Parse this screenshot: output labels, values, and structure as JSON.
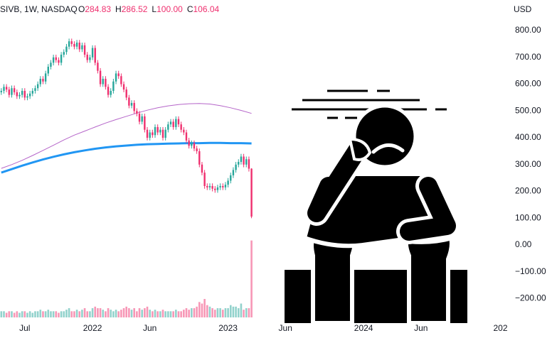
{
  "header": {
    "symbol": "SIVB, 1W, NASDAQ",
    "fields": [
      {
        "key": "O",
        "text": "284.83"
      },
      {
        "key": "H",
        "text": "286.52"
      },
      {
        "key": "L",
        "text": "100.00"
      },
      {
        "key": "C",
        "text": "106.04"
      }
    ]
  },
  "chart_data": {
    "type": "candlestick",
    "currency": "USD",
    "open": [
      570,
      575,
      590,
      580,
      560,
      585,
      570,
      555,
      560,
      575,
      550,
      555,
      565,
      575,
      585,
      600,
      620,
      610,
      640,
      665,
      680,
      700,
      690,
      680,
      710,
      720,
      740,
      760,
      750,
      740,
      755,
      730,
      745,
      710,
      690,
      700,
      735,
      680,
      650,
      600,
      620,
      590,
      560,
      575,
      610,
      640,
      630,
      600,
      580,
      550,
      520,
      530,
      500,
      490,
      460,
      480,
      430,
      400,
      420,
      410,
      440,
      420,
      430,
      400,
      430,
      450,
      460,
      440,
      470,
      450,
      430,
      420,
      390,
      370,
      380,
      360,
      350,
      300,
      270,
      220,
      215,
      220,
      210,
      205,
      215,
      220,
      215,
      225,
      240,
      260,
      280,
      300,
      310,
      330,
      300,
      320,
      284.83
    ],
    "high": [
      585,
      600,
      600,
      590,
      595,
      595,
      580,
      570,
      585,
      585,
      565,
      575,
      585,
      595,
      610,
      630,
      630,
      650,
      675,
      690,
      710,
      710,
      700,
      720,
      730,
      750,
      770,
      770,
      760,
      765,
      765,
      755,
      755,
      720,
      710,
      745,
      745,
      690,
      660,
      630,
      630,
      600,
      585,
      620,
      650,
      650,
      640,
      610,
      590,
      560,
      540,
      540,
      510,
      500,
      490,
      490,
      440,
      430,
      430,
      450,
      450,
      440,
      440,
      440,
      460,
      470,
      470,
      480,
      480,
      460,
      440,
      430,
      400,
      390,
      390,
      370,
      360,
      310,
      280,
      230,
      230,
      230,
      220,
      225,
      230,
      230,
      235,
      250,
      270,
      290,
      310,
      320,
      340,
      340,
      330,
      330,
      286.52
    ],
    "low": [
      560,
      565,
      570,
      550,
      550,
      560,
      545,
      545,
      550,
      540,
      540,
      545,
      555,
      565,
      575,
      590,
      600,
      600,
      630,
      655,
      670,
      680,
      670,
      670,
      700,
      710,
      730,
      740,
      730,
      730,
      720,
      720,
      700,
      680,
      680,
      690,
      670,
      640,
      590,
      590,
      580,
      550,
      550,
      565,
      600,
      620,
      590,
      570,
      540,
      510,
      510,
      490,
      480,
      450,
      450,
      420,
      390,
      390,
      400,
      400,
      410,
      410,
      390,
      390,
      420,
      440,
      430,
      430,
      440,
      420,
      410,
      380,
      360,
      360,
      350,
      340,
      290,
      260,
      210,
      205,
      205,
      200,
      195,
      195,
      205,
      205,
      205,
      215,
      230,
      250,
      270,
      290,
      300,
      290,
      290,
      274,
      100
    ],
    "close": [
      575,
      590,
      580,
      560,
      585,
      570,
      555,
      560,
      575,
      550,
      555,
      565,
      575,
      585,
      600,
      620,
      610,
      640,
      665,
      680,
      700,
      690,
      680,
      710,
      720,
      740,
      760,
      750,
      740,
      755,
      730,
      745,
      710,
      690,
      700,
      735,
      680,
      650,
      600,
      620,
      590,
      560,
      575,
      610,
      640,
      630,
      600,
      580,
      550,
      520,
      530,
      500,
      490,
      460,
      480,
      430,
      400,
      420,
      410,
      440,
      420,
      430,
      400,
      430,
      450,
      460,
      440,
      470,
      450,
      430,
      420,
      390,
      370,
      380,
      360,
      350,
      300,
      270,
      220,
      215,
      220,
      210,
      205,
      215,
      220,
      215,
      225,
      240,
      260,
      280,
      300,
      310,
      330,
      300,
      320,
      284.83,
      106.04
    ],
    "volume": [
      2,
      2,
      1.5,
      2,
      2,
      1.5,
      2,
      1.5,
      2,
      2,
      1.5,
      2,
      1.5,
      2,
      2,
      2.5,
      2,
      2,
      2.5,
      2,
      2,
      2,
      1.5,
      2,
      2,
      2.5,
      3,
      2,
      2,
      2.5,
      2,
      2.5,
      3,
      2,
      2,
      3,
      3.5,
      3,
      3,
      2.5,
      2,
      3,
      2.5,
      2,
      2.5,
      2,
      2.5,
      3,
      3.5,
      3,
      2.5,
      3,
      2,
      3,
      2.5,
      3,
      3.5,
      2.5,
      2,
      2.5,
      2,
      2,
      2.5,
      2,
      2,
      2,
      2,
      2.5,
      2,
      2,
      2.5,
      3,
      2.5,
      3,
      3,
      3.5,
      5,
      4.5,
      6,
      4,
      3.5,
      3,
      2.5,
      3,
      3,
      2.5,
      3,
      3,
      4,
      3.5,
      3.5,
      3,
      4.5,
      2.5,
      3,
      3,
      25
    ],
    "up_color": "#26a69a",
    "down_color": "#ef2f6e",
    "xlim": [
      -0.5,
      196
    ],
    "xticks": [
      {
        "value": 9,
        "label": "Jul"
      },
      {
        "value": 35,
        "label": "2022"
      },
      {
        "value": 57,
        "label": "Jun"
      },
      {
        "value": 87,
        "label": "2023"
      },
      {
        "value": 109,
        "label": "Jun"
      },
      {
        "value": 139,
        "label": "2024"
      },
      {
        "value": 161,
        "label": "Jun"
      },
      {
        "value": 191.5,
        "label": "202"
      }
    ],
    "ylim": [
      -278,
      914
    ],
    "yticks": [
      {
        "value": 800,
        "label": "800.00"
      },
      {
        "value": 700,
        "label": "700.00"
      },
      {
        "value": 600,
        "label": "600.00"
      },
      {
        "value": 500,
        "label": "500.00"
      },
      {
        "value": 400,
        "label": "400.00"
      },
      {
        "value": 300,
        "label": "300.00"
      },
      {
        "value": 200,
        "label": "200.00"
      },
      {
        "value": 100,
        "label": "100.00"
      },
      {
        "value": 0,
        "label": "0.00"
      },
      {
        "value": -100,
        "label": "−100.00"
      },
      {
        "value": -200,
        "label": "−200.00"
      }
    ],
    "volume_lim": [
      0,
      30
    ],
    "overlays": [
      {
        "color": "#2196f3",
        "width": 3,
        "x": [
          0,
          4,
          8,
          12,
          16,
          20,
          24,
          28,
          32,
          36,
          40,
          44,
          48,
          52,
          56,
          60,
          64,
          68,
          72,
          76,
          80,
          84,
          88,
          92,
          96
        ],
        "values": [
          270,
          283,
          296,
          308,
          319,
          329,
          338,
          346,
          353,
          359,
          364,
          368,
          371,
          374,
          376,
          377,
          378,
          379,
          380,
          380,
          381,
          381,
          380,
          380,
          379
        ]
      },
      {
        "color": "#b565c9",
        "width": 1,
        "x": [
          0,
          4,
          8,
          12,
          16,
          20,
          24,
          28,
          32,
          36,
          40,
          44,
          48,
          52,
          56,
          60,
          64,
          68,
          72,
          76,
          80,
          84,
          88,
          92,
          96
        ],
        "values": [
          286,
          300,
          316,
          334,
          353,
          372,
          392,
          410,
          425,
          440,
          455,
          468,
          480,
          492,
          503,
          512,
          519,
          524,
          527,
          528,
          526,
          520,
          512,
          502,
          491
        ]
      }
    ]
  }
}
